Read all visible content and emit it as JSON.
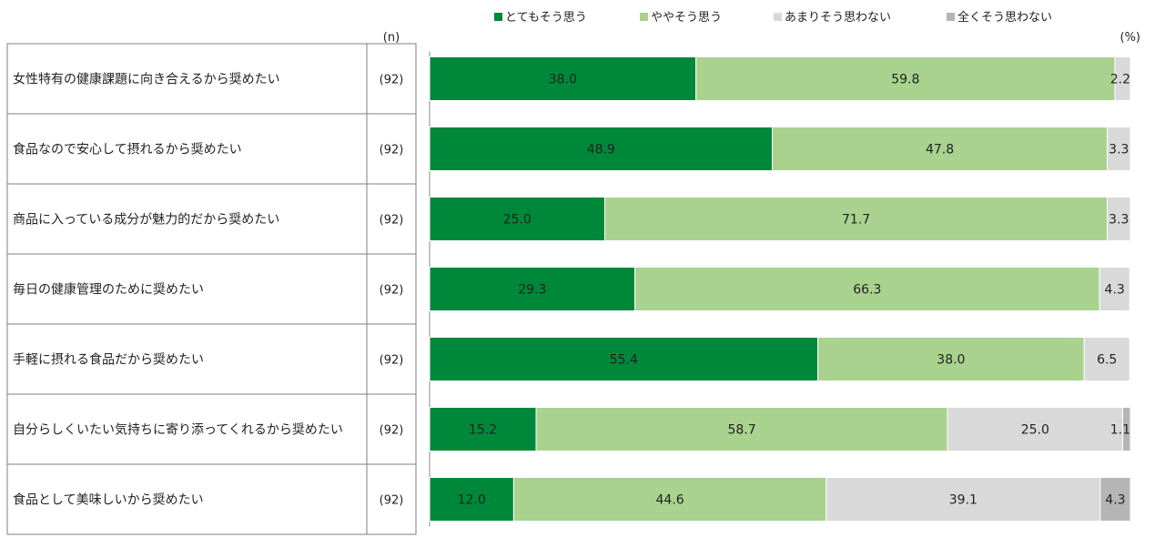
{
  "chart_data": {
    "type": "bar",
    "orientation": "horizontal",
    "stacked": true,
    "n_header": "(n)",
    "unit_label": "(%)",
    "categories": [
      "女性特有の健康課題に向き合えるから奨めたい",
      "食品なので安心して摂れるから奨めたい",
      "商品に入っている成分が魅力的だから奨めたい",
      "毎日の健康管理のために奨めたい",
      "手軽に摂れる食品だから奨めたい",
      "自分らしくいたい気持ちに寄り添ってくれるから奨めたい",
      "食品として美味しいから奨めたい"
    ],
    "n_values": [
      "(92)",
      "(92)",
      "(92)",
      "(92)",
      "(92)",
      "(92)",
      "(92)"
    ],
    "series": [
      {
        "name": "とてもそう思う",
        "color": "#00883a",
        "values": [
          38.0,
          48.9,
          25.0,
          29.3,
          55.4,
          15.2,
          12.0
        ],
        "labels": [
          "38.0",
          "48.9",
          "25.0",
          "29.3",
          "55.4",
          "15.2",
          "12.0"
        ]
      },
      {
        "name": "ややそう思う",
        "color": "#a8d28e",
        "values": [
          59.8,
          47.8,
          71.7,
          66.3,
          38.0,
          58.7,
          44.6
        ],
        "labels": [
          "59.8",
          "47.8",
          "71.7",
          "66.3",
          "38.0",
          "58.7",
          "44.6"
        ]
      },
      {
        "name": "あまりそう思わない",
        "color": "#d9d9d9",
        "values": [
          2.2,
          3.3,
          3.3,
          4.3,
          6.5,
          25.0,
          39.1
        ],
        "labels": [
          "2.2",
          "3.3",
          "3.3",
          "4.3",
          "6.5",
          "25.0",
          "39.1"
        ]
      },
      {
        "name": "全くそう思わない",
        "color": "#b5b5b5",
        "values": [
          0,
          0,
          0,
          0,
          0,
          1.1,
          4.3
        ],
        "labels": [
          "",
          "",
          "",
          "",
          "",
          "1.1",
          "4.3"
        ]
      }
    ],
    "xlim": [
      0,
      100
    ],
    "legend_position": "top"
  }
}
